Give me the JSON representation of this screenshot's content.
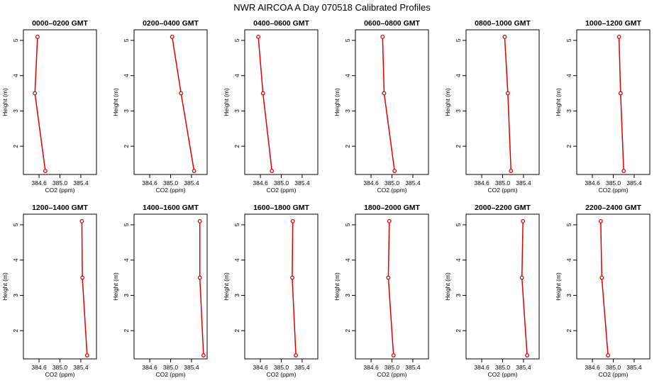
{
  "figure": {
    "title": "NWR AIRCOA A  Day 070518  Calibrated Profiles"
  },
  "chart_data": [
    {
      "type": "line",
      "title": "0000–0200 GMT",
      "xlabel": "CO2 (ppm)",
      "ylabel": "Height (m)",
      "xlim": [
        384.3,
        385.7
      ],
      "ylim": [
        1.2,
        5.3
      ],
      "x_ticks": [
        "384.6",
        "385.0",
        "385.4"
      ],
      "y_ticks": [
        "2",
        "3",
        "4",
        "5"
      ],
      "color": "#e00000",
      "series": [
        {
          "x": [
            384.57,
            384.52,
            384.72
          ],
          "y": [
            5.1,
            3.5,
            1.3
          ]
        }
      ]
    },
    {
      "type": "line",
      "title": "0200–0400 GMT",
      "xlabel": "CO2 (ppm)",
      "ylabel": "Height (m)",
      "xlim": [
        384.3,
        385.7
      ],
      "ylim": [
        1.2,
        5.3
      ],
      "x_ticks": [
        "384.6",
        "385.0",
        "385.4"
      ],
      "y_ticks": [
        "2",
        "3",
        "4",
        "5"
      ],
      "color": "#e00000",
      "series": [
        {
          "x": [
            385.03,
            385.2,
            385.45
          ],
          "y": [
            5.1,
            3.5,
            1.3
          ]
        }
      ]
    },
    {
      "type": "line",
      "title": "0400–0600 GMT",
      "xlabel": "CO2 (ppm)",
      "ylabel": "Height (m)",
      "xlim": [
        384.3,
        385.7
      ],
      "ylim": [
        1.2,
        5.3
      ],
      "x_ticks": [
        "384.6",
        "385.0",
        "385.4"
      ],
      "y_ticks": [
        "2",
        "3",
        "4",
        "5"
      ],
      "color": "#e00000",
      "series": [
        {
          "x": [
            384.56,
            384.65,
            384.82
          ],
          "y": [
            5.1,
            3.5,
            1.3
          ]
        }
      ]
    },
    {
      "type": "line",
      "title": "0600–0800 GMT",
      "xlabel": "CO2 (ppm)",
      "ylabel": "Height (m)",
      "xlim": [
        384.3,
        385.7
      ],
      "ylim": [
        1.2,
        5.3
      ],
      "x_ticks": [
        "384.6",
        "385.0",
        "385.4"
      ],
      "y_ticks": [
        "2",
        "3",
        "4",
        "5"
      ],
      "color": "#e00000",
      "series": [
        {
          "x": [
            384.82,
            384.85,
            385.05
          ],
          "y": [
            5.1,
            3.5,
            1.3
          ]
        }
      ]
    },
    {
      "type": "line",
      "title": "0800–1000 GMT",
      "xlabel": "CO2 (ppm)",
      "ylabel": "Height (m)",
      "xlim": [
        384.3,
        385.7
      ],
      "ylim": [
        1.2,
        5.3
      ],
      "x_ticks": [
        "384.6",
        "385.0",
        "385.4"
      ],
      "y_ticks": [
        "2",
        "3",
        "4",
        "5"
      ],
      "color": "#e00000",
      "series": [
        {
          "x": [
            385.04,
            385.1,
            385.16
          ],
          "y": [
            5.1,
            3.5,
            1.3
          ]
        }
      ]
    },
    {
      "type": "line",
      "title": "1000–1200 GMT",
      "xlabel": "CO2 (ppm)",
      "ylabel": "Height (m)",
      "xlim": [
        384.3,
        385.7
      ],
      "ylim": [
        1.2,
        5.3
      ],
      "x_ticks": [
        "384.6",
        "385.0",
        "385.4"
      ],
      "y_ticks": [
        "2",
        "3",
        "4",
        "5"
      ],
      "color": "#e00000",
      "series": [
        {
          "x": [
            385.11,
            385.14,
            385.2
          ],
          "y": [
            5.1,
            3.5,
            1.3
          ]
        }
      ]
    },
    {
      "type": "line",
      "title": "1200–1400 GMT",
      "xlabel": "CO2 (ppm)",
      "ylabel": "Height (m)",
      "xlim": [
        384.3,
        385.7
      ],
      "ylim": [
        1.2,
        5.3
      ],
      "x_ticks": [
        "384.6",
        "385.0",
        "385.4"
      ],
      "y_ticks": [
        "2",
        "3",
        "4",
        "5"
      ],
      "color": "#e00000",
      "series": [
        {
          "x": [
            385.42,
            385.43,
            385.52
          ],
          "y": [
            5.1,
            3.5,
            1.3
          ]
        }
      ]
    },
    {
      "type": "line",
      "title": "1400–1600 GMT",
      "xlabel": "CO2 (ppm)",
      "ylabel": "Height (m)",
      "xlim": [
        384.3,
        385.7
      ],
      "ylim": [
        1.2,
        5.3
      ],
      "x_ticks": [
        "384.6",
        "385.0",
        "385.4"
      ],
      "y_ticks": [
        "2",
        "3",
        "4",
        "5"
      ],
      "color": "#e00000",
      "series": [
        {
          "x": [
            385.56,
            385.56,
            385.63
          ],
          "y": [
            5.1,
            3.5,
            1.3
          ]
        }
      ]
    },
    {
      "type": "line",
      "title": "1600–1800 GMT",
      "xlabel": "CO2 (ppm)",
      "ylabel": "Height (m)",
      "xlim": [
        384.3,
        385.7
      ],
      "ylim": [
        1.2,
        5.3
      ],
      "x_ticks": [
        "384.6",
        "385.0",
        "385.4"
      ],
      "y_ticks": [
        "2",
        "3",
        "4",
        "5"
      ],
      "color": "#e00000",
      "series": [
        {
          "x": [
            385.22,
            385.21,
            385.28
          ],
          "y": [
            5.1,
            3.5,
            1.3
          ]
        }
      ]
    },
    {
      "type": "line",
      "title": "1800–2000 GMT",
      "xlabel": "CO2 (ppm)",
      "ylabel": "Height (m)",
      "xlim": [
        384.3,
        385.7
      ],
      "ylim": [
        1.2,
        5.3
      ],
      "x_ticks": [
        "384.6",
        "385.0",
        "385.4"
      ],
      "y_ticks": [
        "2",
        "3",
        "4",
        "5"
      ],
      "color": "#e00000",
      "series": [
        {
          "x": [
            384.95,
            384.93,
            385.03
          ],
          "y": [
            5.1,
            3.5,
            1.3
          ]
        }
      ]
    },
    {
      "type": "line",
      "title": "2000–2200 GMT",
      "xlabel": "CO2 (ppm)",
      "ylabel": "Height (m)",
      "xlim": [
        384.3,
        385.7
      ],
      "ylim": [
        1.2,
        5.3
      ],
      "x_ticks": [
        "384.6",
        "385.0",
        "385.4"
      ],
      "y_ticks": [
        "2",
        "3",
        "4",
        "5"
      ],
      "color": "#e00000",
      "series": [
        {
          "x": [
            385.39,
            385.37,
            385.47
          ],
          "y": [
            5.1,
            3.5,
            1.3
          ]
        }
      ]
    },
    {
      "type": "line",
      "title": "2200–2400 GMT",
      "xlabel": "CO2 (ppm)",
      "ylabel": "Height (m)",
      "xlim": [
        384.3,
        385.7
      ],
      "ylim": [
        1.2,
        5.3
      ],
      "x_ticks": [
        "384.6",
        "385.0",
        "385.4"
      ],
      "y_ticks": [
        "2",
        "3",
        "4",
        "5"
      ],
      "color": "#e00000",
      "series": [
        {
          "x": [
            384.76,
            384.78,
            384.9
          ],
          "y": [
            5.1,
            3.5,
            1.3
          ]
        }
      ]
    }
  ]
}
